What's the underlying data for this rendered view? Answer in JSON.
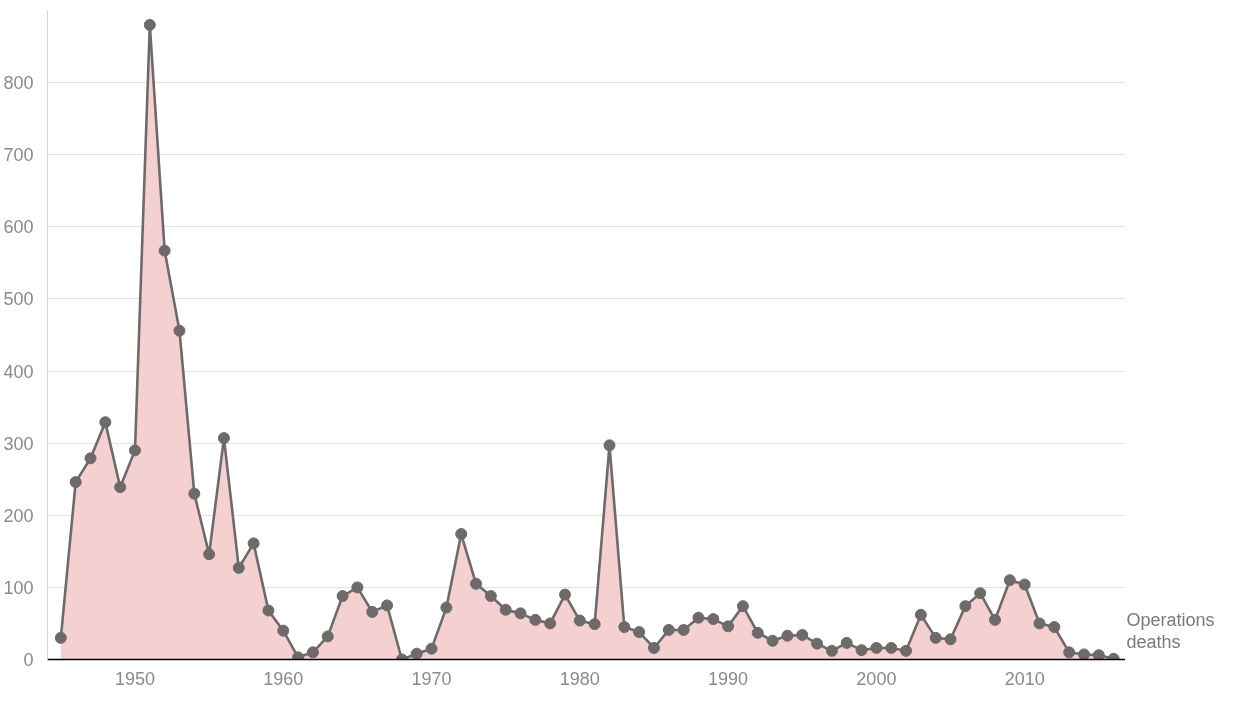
{
  "chart_data": {
    "type": "area",
    "x": [
      1945,
      1946,
      1947,
      1948,
      1949,
      1950,
      1951,
      1952,
      1953,
      1954,
      1955,
      1956,
      1957,
      1958,
      1959,
      1960,
      1961,
      1962,
      1963,
      1964,
      1965,
      1966,
      1967,
      1968,
      1969,
      1970,
      1971,
      1972,
      1973,
      1974,
      1975,
      1976,
      1977,
      1978,
      1979,
      1980,
      1981,
      1982,
      1983,
      1984,
      1985,
      1986,
      1987,
      1988,
      1989,
      1990,
      1991,
      1992,
      1993,
      1994,
      1995,
      1996,
      1997,
      1998,
      1999,
      2000,
      2001,
      2002,
      2003,
      2004,
      2005,
      2006,
      2007,
      2008,
      2009,
      2010,
      2011,
      2012,
      2013,
      2014,
      2015,
      2016
    ],
    "series": [
      {
        "name": "Operations deaths",
        "color": "#6f6a6a",
        "values": [
          30,
          246,
          279,
          329,
          239,
          290,
          880,
          567,
          456,
          230,
          146,
          307,
          127,
          161,
          68,
          40,
          3,
          10,
          32,
          88,
          100,
          66,
          75,
          0,
          8,
          15,
          72,
          174,
          105,
          88,
          69,
          64,
          55,
          50,
          90,
          54,
          49,
          297,
          45,
          38,
          16,
          41,
          41,
          58,
          56,
          46,
          74,
          37,
          26,
          33,
          34,
          22,
          12,
          23,
          13,
          16,
          16,
          12,
          62,
          30,
          28,
          74,
          92,
          55,
          110,
          104,
          50,
          45,
          10,
          7,
          6,
          1
        ]
      }
    ],
    "xlim": [
      1944.1,
      2016.8
    ],
    "ylim": [
      0,
      900
    ],
    "xticks": [
      1950,
      1960,
      1970,
      1980,
      1990,
      2000,
      2010
    ],
    "yticks": [
      0,
      100,
      200,
      300,
      400,
      500,
      600,
      700,
      800
    ],
    "grid": "y",
    "marker": "circle",
    "line_style": "solid"
  }
}
